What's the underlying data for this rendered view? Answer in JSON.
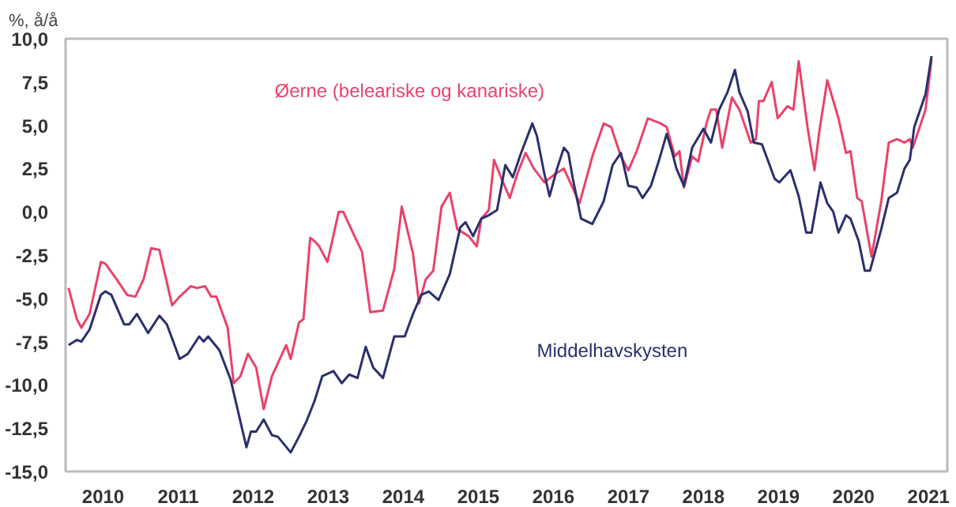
{
  "chart_data": {
    "type": "line",
    "ylabel": "%, å/å",
    "xlim": [
      2010,
      2021.75
    ],
    "ylim": [
      -15,
      10
    ],
    "xticks": [
      {
        "value": 2010.5,
        "label": "2010"
      },
      {
        "value": 2011.5,
        "label": "2011"
      },
      {
        "value": 2012.5,
        "label": "2012"
      },
      {
        "value": 2013.5,
        "label": "2013"
      },
      {
        "value": 2014.5,
        "label": "2014"
      },
      {
        "value": 2015.5,
        "label": "2015"
      },
      {
        "value": 2016.5,
        "label": "2016"
      },
      {
        "value": 2017.5,
        "label": "2017"
      },
      {
        "value": 2018.5,
        "label": "2018"
      },
      {
        "value": 2019.5,
        "label": "2019"
      },
      {
        "value": 2020.5,
        "label": "2020"
      },
      {
        "value": 2021.5,
        "label": "2021"
      }
    ],
    "yticks": [
      {
        "value": 10,
        "label": "10,0"
      },
      {
        "value": 7.5,
        "label": "7,5"
      },
      {
        "value": 5,
        "label": "5,0"
      },
      {
        "value": 2.5,
        "label": "2,5"
      },
      {
        "value": 0,
        "label": "0,0"
      },
      {
        "value": -2.5,
        "label": "-2,5"
      },
      {
        "value": -5,
        "label": "-5,0"
      },
      {
        "value": -7.5,
        "label": "-7,5"
      },
      {
        "value": -10,
        "label": "-10,0"
      },
      {
        "value": -12.5,
        "label": "-12,5"
      },
      {
        "value": -15,
        "label": "-15,0"
      }
    ],
    "grid": false,
    "legend": false,
    "series": [
      {
        "name": "Øerne (beleariske og kanariske)",
        "color": "#e8436b",
        "x": [
          2010.04,
          2010.15,
          2010.21,
          2010.32,
          2010.47,
          2010.53,
          2010.68,
          2010.82,
          2010.93,
          2011.04,
          2011.14,
          2011.25,
          2011.42,
          2011.52,
          2011.67,
          2011.75,
          2011.86,
          2011.94,
          2012.01,
          2012.16,
          2012.24,
          2012.33,
          2012.43,
          2012.54,
          2012.64,
          2012.75,
          2012.94,
          2013.0,
          2013.11,
          2013.17,
          2013.26,
          2013.32,
          2013.38,
          2013.49,
          2013.64,
          2013.7,
          2013.85,
          2013.95,
          2014.06,
          2014.23,
          2014.38,
          2014.48,
          2014.63,
          2014.71,
          2014.8,
          2014.9,
          2015.01,
          2015.12,
          2015.22,
          2015.37,
          2015.48,
          2015.54,
          2015.64,
          2015.71,
          2015.81,
          2015.92,
          2016.02,
          2016.13,
          2016.24,
          2016.38,
          2016.53,
          2016.64,
          2016.85,
          2017.02,
          2017.17,
          2017.27,
          2017.4,
          2017.5,
          2017.61,
          2017.76,
          2017.93,
          2018.01,
          2018.12,
          2018.18,
          2018.24,
          2018.35,
          2018.43,
          2018.54,
          2018.6,
          2018.67,
          2018.75,
          2018.88,
          2018.98,
          2019.13,
          2019.2,
          2019.24,
          2019.3,
          2019.41,
          2019.49,
          2019.62,
          2019.7,
          2019.77,
          2019.89,
          2019.98,
          2020.04,
          2020.15,
          2020.3,
          2020.4,
          2020.46,
          2020.55,
          2020.61,
          2020.74,
          2020.87,
          2020.97,
          2021.08,
          2021.18,
          2021.25,
          2021.29,
          2021.46,
          2021.54
        ],
        "values": [
          -4.4,
          -6.2,
          -6.7,
          -5.9,
          -2.9,
          -3.0,
          -3.9,
          -4.8,
          -4.9,
          -3.9,
          -2.1,
          -2.2,
          -5.4,
          -4.9,
          -4.3,
          -4.4,
          -4.3,
          -4.9,
          -4.9,
          -6.7,
          -9.9,
          -9.5,
          -8.2,
          -9.0,
          -11.4,
          -9.5,
          -7.7,
          -8.5,
          -6.4,
          -6.2,
          -1.5,
          -1.7,
          -2.0,
          -2.9,
          0.0,
          0.0,
          -1.4,
          -2.3,
          -5.8,
          -5.7,
          -3.3,
          0.3,
          -2.4,
          -5.3,
          -3.9,
          -3.4,
          0.3,
          1.1,
          -1.0,
          -1.4,
          -2.0,
          -0.4,
          0.1,
          3.0,
          1.9,
          0.8,
          2.2,
          3.4,
          2.5,
          1.7,
          2.2,
          2.5,
          0.5,
          3.2,
          5.1,
          4.9,
          3.2,
          2.4,
          3.5,
          5.4,
          5.1,
          4.9,
          3.2,
          3.5,
          1.4,
          3.2,
          2.9,
          5.1,
          5.9,
          5.9,
          3.7,
          6.6,
          5.9,
          4.0,
          4.2,
          6.4,
          6.4,
          7.5,
          5.4,
          6.1,
          5.9,
          8.7,
          4.8,
          2.4,
          4.5,
          7.6,
          5.4,
          3.4,
          3.5,
          0.8,
          0.6,
          -2.6,
          0.6,
          4.0,
          4.2,
          4.0,
          4.2,
          3.7,
          5.9,
          8.8
        ]
      },
      {
        "name": "Middelhavskysten",
        "color": "#2b2f6e",
        "x": [
          2010.04,
          2010.15,
          2010.21,
          2010.32,
          2010.47,
          2010.53,
          2010.61,
          2010.78,
          2010.85,
          2010.95,
          2011.1,
          2011.25,
          2011.35,
          2011.52,
          2011.63,
          2011.78,
          2011.84,
          2011.9,
          2012.05,
          2012.2,
          2012.41,
          2012.47,
          2012.54,
          2012.64,
          2012.75,
          2012.83,
          2013.0,
          2013.11,
          2013.21,
          2013.32,
          2013.42,
          2013.57,
          2013.68,
          2013.78,
          2013.89,
          2014.0,
          2014.1,
          2014.23,
          2014.38,
          2014.52,
          2014.63,
          2014.74,
          2014.84,
          2014.97,
          2015.12,
          2015.26,
          2015.33,
          2015.43,
          2015.54,
          2015.64,
          2015.75,
          2015.86,
          2015.96,
          2016.07,
          2016.22,
          2016.28,
          2016.38,
          2016.45,
          2016.55,
          2016.64,
          2016.7,
          2016.76,
          2016.87,
          2017.02,
          2017.17,
          2017.29,
          2017.4,
          2017.5,
          2017.61,
          2017.69,
          2017.8,
          2017.91,
          2018.01,
          2018.08,
          2018.14,
          2018.24,
          2018.35,
          2018.5,
          2018.6,
          2018.71,
          2018.82,
          2018.92,
          2018.98,
          2019.09,
          2019.17,
          2019.28,
          2019.45,
          2019.51,
          2019.66,
          2019.77,
          2019.87,
          2019.94,
          2020.06,
          2020.15,
          2020.23,
          2020.3,
          2020.4,
          2020.46,
          2020.57,
          2020.65,
          2020.72,
          2020.87,
          2020.97,
          2021.08,
          2021.18,
          2021.25,
          2021.31,
          2021.46,
          2021.54
        ],
        "values": [
          -7.7,
          -7.4,
          -7.5,
          -6.8,
          -4.8,
          -4.6,
          -4.8,
          -6.5,
          -6.5,
          -5.9,
          -7.0,
          -6.0,
          -6.5,
          -8.5,
          -8.2,
          -7.2,
          -7.5,
          -7.2,
          -8.0,
          -9.7,
          -13.6,
          -12.7,
          -12.7,
          -12.0,
          -12.9,
          -13.0,
          -13.9,
          -13.0,
          -12.1,
          -10.9,
          -9.5,
          -9.2,
          -9.9,
          -9.4,
          -9.6,
          -7.8,
          -9.0,
          -9.6,
          -7.2,
          -7.2,
          -5.9,
          -4.8,
          -4.6,
          -5.1,
          -3.6,
          -0.9,
          -0.6,
          -1.4,
          -0.4,
          -0.2,
          0.1,
          2.7,
          2.0,
          3.4,
          5.1,
          4.4,
          2.2,
          0.9,
          2.5,
          3.7,
          3.4,
          1.9,
          -0.4,
          -0.7,
          0.6,
          2.7,
          3.4,
          1.5,
          1.4,
          0.8,
          1.5,
          3.0,
          4.5,
          3.5,
          2.5,
          1.5,
          3.7,
          4.8,
          4.0,
          5.9,
          6.9,
          8.2,
          6.9,
          5.8,
          4.0,
          3.9,
          1.9,
          1.7,
          2.4,
          0.9,
          -1.2,
          -1.2,
          1.7,
          0.5,
          0.0,
          -1.2,
          -0.2,
          -0.4,
          -1.7,
          -3.4,
          -3.4,
          -1.0,
          0.8,
          1.1,
          2.5,
          3.0,
          4.9,
          6.8,
          9.0
        ]
      }
    ]
  }
}
